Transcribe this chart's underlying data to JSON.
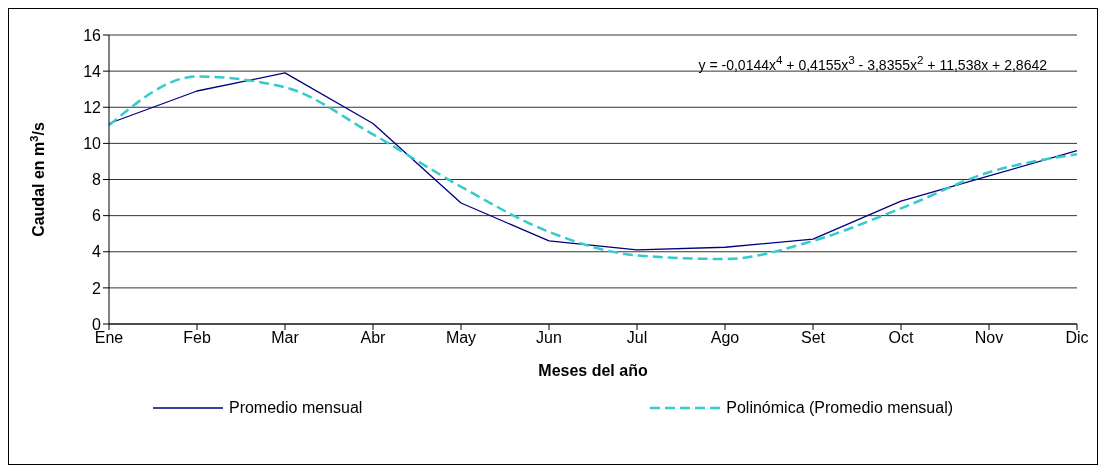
{
  "chart_data": {
    "type": "line",
    "xlabel": "Meses del año",
    "ylabel": "Caudal en m$^{3}$/s",
    "categories": [
      "Ene",
      "Feb",
      "Mar",
      "Abr",
      "May",
      "Jun",
      "Jul",
      "Ago",
      "Set",
      "Oct",
      "Nov",
      "Dic"
    ],
    "series": [
      {
        "name": "Promedio mensual",
        "color": "#000080",
        "values": [
          11.1,
          12.9,
          13.9,
          11.1,
          6.7,
          4.6,
          4.1,
          4.25,
          4.7,
          6.8,
          8.2,
          9.6
        ]
      },
      {
        "name": "Polinómica (Promedio mensual)",
        "color": "#33cccc",
        "line_style": "dashed",
        "values": [
          11.0,
          13.7,
          13.1,
          10.5,
          7.6,
          5.1,
          3.8,
          3.6,
          4.6,
          6.4,
          8.4,
          9.4
        ]
      }
    ],
    "ylim": [
      0,
      16
    ],
    "yticks": [
      0,
      2,
      4,
      6,
      8,
      10,
      12,
      14,
      16
    ],
    "grid": "y",
    "marker": "none",
    "legend": "bottom",
    "annotations": [
      "y = -0,0144x$^{4}$ + 0,4155x$^{3}$ - 3,8355x$^{2}$ + 11,538x + 2,8642"
    ]
  }
}
